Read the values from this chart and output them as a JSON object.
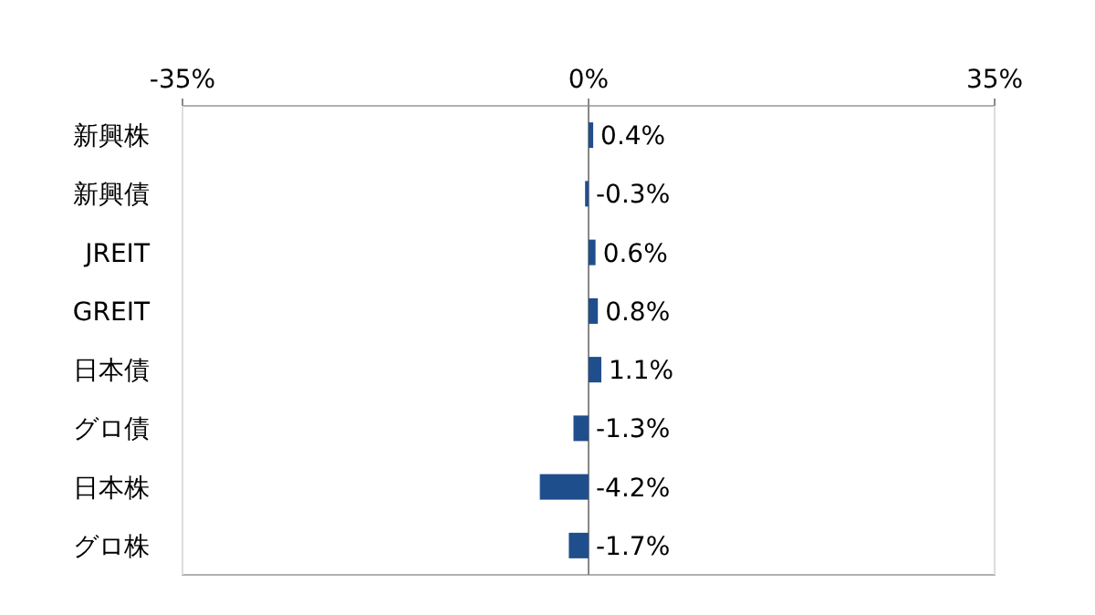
{
  "chart_data": {
    "type": "bar",
    "orientation": "horizontal",
    "categories": [
      "新興株",
      "新興債",
      "JREIT",
      "GREIT",
      "日本債",
      "グロ債",
      "日本株",
      "グロ株"
    ],
    "values": [
      0.4,
      -0.3,
      0.6,
      0.8,
      1.1,
      -1.3,
      -4.2,
      -1.7
    ],
    "value_labels": [
      "0.4%",
      "-0.3%",
      "0.6%",
      "0.8%",
      "1.1%",
      "-1.3%",
      "-4.2%",
      "-1.7%"
    ],
    "color": "#1f4e8c",
    "xlim": [
      -35,
      35
    ],
    "xticks": [
      {
        "value": -35,
        "label": "-35%"
      },
      {
        "value": 0,
        "label": "0%"
      },
      {
        "value": 35,
        "label": "35%"
      }
    ],
    "grid": "x"
  }
}
